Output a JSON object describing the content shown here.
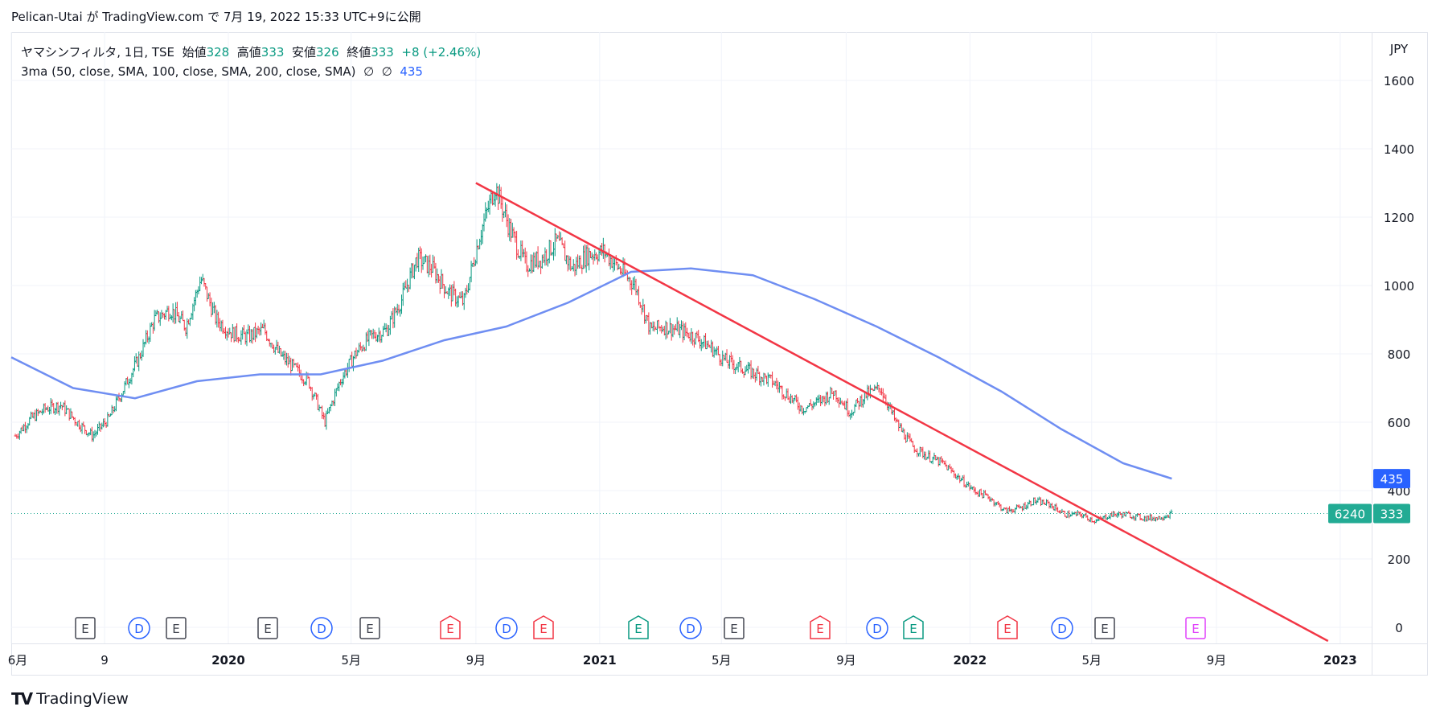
{
  "header": {
    "user": "Pelican-Utai",
    "ga": "が",
    "site": "TradingView.com",
    "de": "で",
    "date": "7月 19, 2022 15:33 UTC+9",
    "ni": "に公開"
  },
  "legend": {
    "symbol": "ヤマシンフィルタ, 1日, TSE",
    "open_label": "始値",
    "open": "328",
    "high_label": "高値",
    "high": "333",
    "low_label": "安値",
    "low": "326",
    "close_label": "終値",
    "close": "333",
    "change": "+8 (+2.46%)",
    "indicator": "3ma (50, close, SMA, 100, close, SMA, 200, close, SMA)",
    "empty1": "∅",
    "empty2": "∅",
    "ma_value": "435"
  },
  "axis": {
    "currency": "JPY",
    "price_ticks": [
      "1600",
      "1400",
      "1200",
      "1000",
      "800",
      "600",
      "400",
      "200",
      "0"
    ],
    "time_ticks": [
      "6月",
      "9",
      "2020",
      "5月",
      "9月",
      "2021",
      "5月",
      "9月",
      "2022",
      "5月",
      "9月",
      "2023"
    ],
    "last_price_label": "333",
    "ma_label": "435",
    "volume_label": "6240"
  },
  "events": [
    "E",
    "D",
    "E",
    "E",
    "D",
    "E",
    "E",
    "D",
    "E",
    "E",
    "D",
    "E",
    "E",
    "D",
    "E",
    "E",
    "D",
    "E",
    "E"
  ],
  "colors": {
    "up": "#089981",
    "down": "#f23645",
    "ma200": "#6f8ef2",
    "trendline": "#f23645",
    "ma_badge": "#2962ff",
    "price_badge": "#22ab94",
    "event_dividend": "#2962ff",
    "event_earnings_gray": "#434651",
    "event_earnings_red": "#f23645",
    "event_earnings_green": "#089981",
    "event_earnings_future": "#e040fb"
  },
  "footer": {
    "brand": "TradingView"
  },
  "chart_data": {
    "type": "line",
    "title": "ヤマシンフィルタ, 1日, TSE",
    "xlabel": "",
    "ylabel": "JPY",
    "ylim": [
      0,
      1600
    ],
    "xlim": [
      "2019-06-01",
      "2023-02-01"
    ],
    "grid": true,
    "series": [
      {
        "name": "",
        "style": "ohlc-bars",
        "x": [
          "2019-06-05",
          "2019-06-20",
          "2019-07-05",
          "2019-07-20",
          "2019-08-05",
          "2019-08-20",
          "2019-09-05",
          "2019-09-20",
          "2019-10-05",
          "2019-10-20",
          "2019-11-05",
          "2019-11-20",
          "2019-12-05",
          "2019-12-20",
          "2020-01-05",
          "2020-01-20",
          "2020-02-05",
          "2020-02-20",
          "2020-03-05",
          "2020-03-20",
          "2020-04-05",
          "2020-04-20",
          "2020-05-05",
          "2020-05-20",
          "2020-06-05",
          "2020-06-20",
          "2020-07-05",
          "2020-07-20",
          "2020-08-05",
          "2020-08-20",
          "2020-09-05",
          "2020-09-20",
          "2020-10-05",
          "2020-10-20",
          "2020-11-05",
          "2020-11-20",
          "2020-12-05",
          "2020-12-20",
          "2021-01-05",
          "2021-01-20",
          "2021-02-05",
          "2021-02-20",
          "2021-03-05",
          "2021-03-20",
          "2021-04-05",
          "2021-04-20",
          "2021-05-05",
          "2021-05-20",
          "2021-06-05",
          "2021-06-20",
          "2021-07-05",
          "2021-07-20",
          "2021-08-05",
          "2021-08-20",
          "2021-09-05",
          "2021-09-20",
          "2021-10-05",
          "2021-10-20",
          "2021-11-05",
          "2021-11-20",
          "2021-12-05",
          "2021-12-20",
          "2022-01-05",
          "2022-01-20",
          "2022-02-05",
          "2022-02-20",
          "2022-03-05",
          "2022-03-20",
          "2022-04-05",
          "2022-04-20",
          "2022-05-05",
          "2022-05-20",
          "2022-06-05",
          "2022-06-20",
          "2022-07-05",
          "2022-07-19"
        ],
        "values": [
          560,
          610,
          640,
          650,
          600,
          560,
          610,
          700,
          790,
          900,
          930,
          880,
          1020,
          900,
          860,
          850,
          870,
          800,
          760,
          720,
          600,
          720,
          800,
          850,
          870,
          960,
          1080,
          1050,
          980,
          950,
          1150,
          1290,
          1160,
          1060,
          1080,
          1130,
          1050,
          1090,
          1100,
          1050,
          1000,
          870,
          880,
          870,
          850,
          820,
          780,
          760,
          740,
          720,
          680,
          640,
          660,
          690,
          630,
          680,
          700,
          600,
          530,
          500,
          480,
          440,
          400,
          380,
          340,
          350,
          370,
          360,
          330,
          330,
          310,
          330,
          330,
          320,
          320,
          333
        ]
      },
      {
        "name": "",
        "style": "line",
        "x": [
          "2019-06-01",
          "2019-08-01",
          "2019-10-01",
          "2019-12-01",
          "2020-02-01",
          "2020-04-01",
          "2020-06-01",
          "2020-08-01",
          "2020-10-01",
          "2020-12-01",
          "2021-02-01",
          "2021-04-01",
          "2021-06-01",
          "2021-08-01",
          "2021-10-01",
          "2021-12-01",
          "2022-02-01",
          "2022-04-01",
          "2022-06-01",
          "2022-07-19"
        ],
        "values": [
          790,
          700,
          670,
          720,
          740,
          740,
          780,
          840,
          880,
          950,
          1040,
          1050,
          1030,
          960,
          880,
          790,
          690,
          580,
          480,
          435
        ]
      },
      {
        "name": "",
        "style": "trendline",
        "x": [
          "2020-09-01",
          "2022-12-20"
        ],
        "values": [
          1300,
          -40
        ]
      }
    ]
  }
}
